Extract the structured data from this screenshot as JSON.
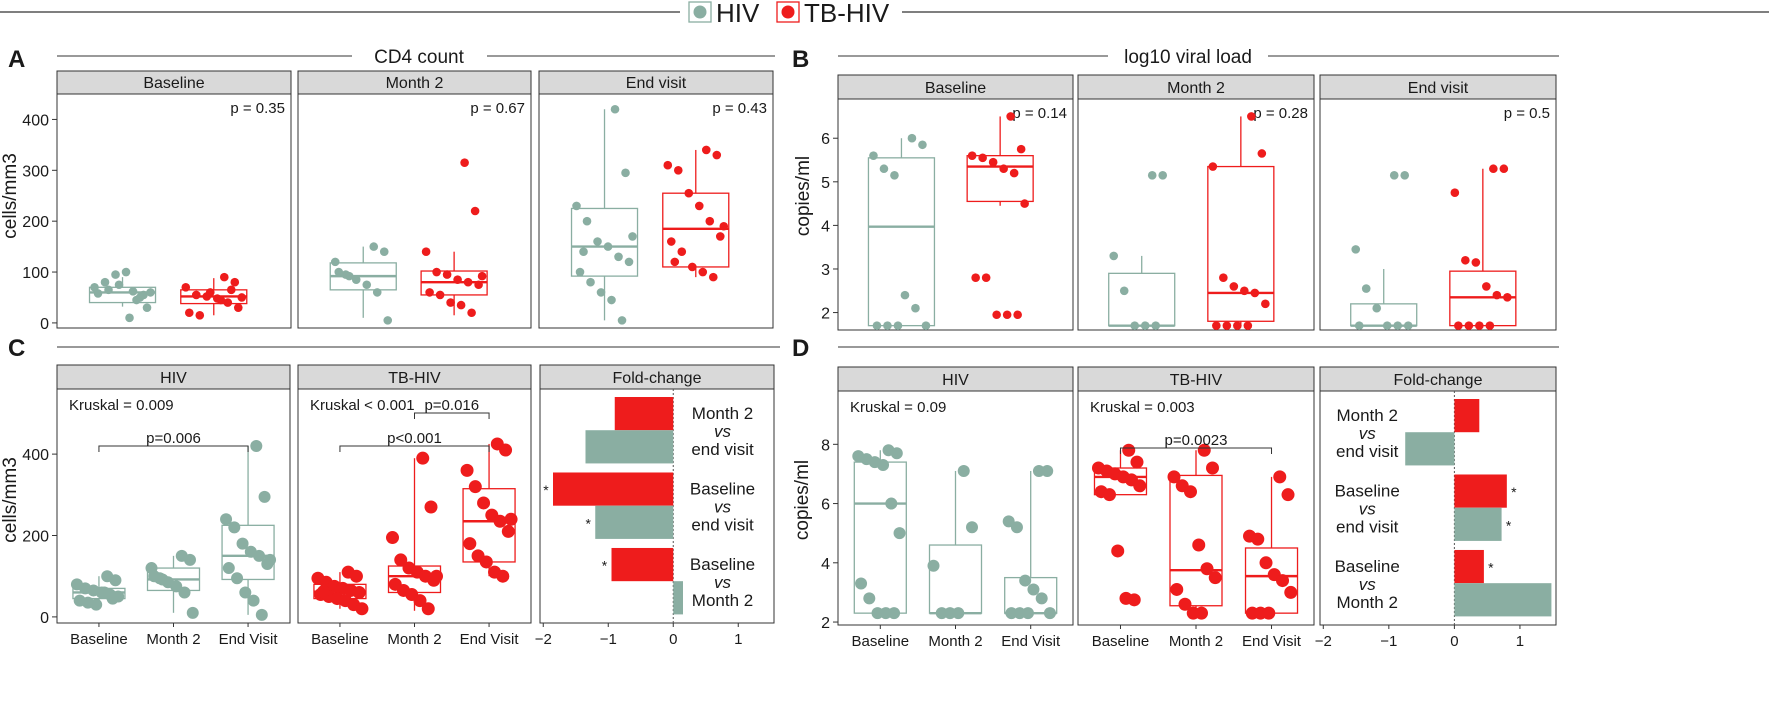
{
  "colors": {
    "hiv": "#8aaea2",
    "tbhiv": "#ee1c1c",
    "strip": "#d9d9d9",
    "axis": "#333333"
  },
  "legend": {
    "hiv": "HIV",
    "tbhiv": "TB-HIV"
  },
  "section_a": {
    "letter": "A",
    "title": "CD4 count",
    "ylabel": "cells/mm3"
  },
  "section_b": {
    "letter": "B",
    "title": "log10 viral load",
    "ylabel": "copies/ml"
  },
  "section_c": {
    "letter": "C",
    "ylabel": "cells/mm3"
  },
  "section_d": {
    "letter": "D",
    "ylabel": "copies/ml"
  },
  "chart_data": [
    {
      "id": "A",
      "type": "box",
      "ylim": [
        -10,
        450
      ],
      "yticks": [
        0,
        100,
        200,
        300,
        400
      ],
      "panels": [
        {
          "strip": "Baseline",
          "pval": "p = 0.35",
          "groups": [
            {
              "g": "hiv",
              "box": [
                40,
                60,
                70,
                32,
                90
              ],
              "pts": [
                62,
                55,
                70,
                80,
                95,
                100,
                45,
                30,
                58,
                65,
                75,
                10,
                50,
                60
              ]
            },
            {
              "g": "tbhiv",
              "box": [
                38,
                52,
                65,
                15,
                88
              ],
              "pts": [
                90,
                80,
                70,
                55,
                52,
                48,
                40,
                30,
                20,
                15,
                60,
                45,
                65,
                50
              ]
            }
          ]
        },
        {
          "strip": "Month 2",
          "pval": "p = 0.67",
          "groups": [
            {
              "g": "hiv",
              "box": [
                65,
                92,
                118,
                10,
                150
              ],
              "pts": [
                150,
                140,
                120,
                95,
                85,
                75,
                60,
                5,
                100,
                92
              ]
            },
            {
              "g": "tbhiv",
              "box": [
                55,
                80,
                102,
                15,
                140
              ],
              "pts": [
                315,
                220,
                140,
                100,
                95,
                85,
                80,
                75,
                60,
                55,
                40,
                35,
                20,
                92
              ]
            }
          ]
        },
        {
          "strip": "End  visit",
          "pval": "p = 0.43",
          "groups": [
            {
              "g": "hiv",
              "box": [
                92,
                150,
                225,
                5,
                420
              ],
              "pts": [
                420,
                295,
                230,
                200,
                160,
                150,
                130,
                120,
                100,
                80,
                60,
                45,
                5,
                170,
                140
              ]
            },
            {
              "g": "tbhiv",
              "box": [
                110,
                185,
                255,
                90,
                340
              ],
              "pts": [
                340,
                330,
                310,
                300,
                255,
                230,
                200,
                170,
                160,
                140,
                110,
                100,
                90,
                190,
                120
              ]
            }
          ]
        }
      ]
    },
    {
      "id": "B",
      "type": "box",
      "ylim": [
        1.6,
        6.9
      ],
      "yticks": [
        2,
        3,
        4,
        5,
        6
      ],
      "panels": [
        {
          "strip": "Baseline",
          "pval": "p = 0.14",
          "groups": [
            {
              "g": "hiv",
              "box": [
                1.7,
                3.97,
                5.55,
                1.7,
                6.0
              ],
              "pts": [
                6.0,
                5.85,
                5.6,
                5.3,
                5.15,
                2.4,
                2.1,
                1.7,
                1.7,
                1.7,
                1.7
              ]
            },
            {
              "g": "tbhiv",
              "box": [
                4.55,
                5.35,
                5.6,
                4.45,
                6.5
              ],
              "pts": [
                6.5,
                5.75,
                5.6,
                5.55,
                5.45,
                5.3,
                5.2,
                4.5,
                2.8,
                2.8,
                1.95,
                1.95,
                1.95
              ]
            }
          ]
        },
        {
          "strip": "Month 2",
          "pval": "p = 0.28",
          "groups": [
            {
              "g": "hiv",
              "box": [
                1.7,
                1.7,
                2.9,
                1.7,
                3.3
              ],
              "pts": [
                5.15,
                5.15,
                3.3,
                2.5,
                1.7,
                1.7,
                1.7
              ]
            },
            {
              "g": "tbhiv",
              "box": [
                1.8,
                2.45,
                5.35,
                1.7,
                6.5
              ],
              "pts": [
                6.5,
                5.65,
                5.35,
                2.8,
                2.6,
                2.5,
                2.45,
                2.2,
                1.7,
                1.7,
                1.7,
                1.7
              ]
            }
          ]
        },
        {
          "strip": "End visit",
          "pval": "p = 0.5",
          "groups": [
            {
              "g": "hiv",
              "box": [
                1.7,
                1.7,
                2.2,
                1.7,
                3.0
              ],
              "pts": [
                5.15,
                5.15,
                3.45,
                2.55,
                2.1,
                1.7,
                1.7,
                1.7,
                1.7
              ]
            },
            {
              "g": "tbhiv",
              "box": [
                1.7,
                2.35,
                2.95,
                1.7,
                5.3
              ],
              "pts": [
                5.3,
                5.3,
                4.75,
                3.2,
                3.15,
                2.6,
                2.4,
                2.35,
                1.7,
                1.7,
                1.7,
                1.7
              ]
            }
          ]
        }
      ]
    },
    {
      "id": "C",
      "type": "box",
      "ylim": [
        -15,
        560
      ],
      "yticks": [
        0,
        200,
        400
      ],
      "xcats": [
        "Baseline",
        "Month 2",
        "End Visit"
      ],
      "panels": [
        {
          "strip": "HIV",
          "color": "hiv",
          "kruskal": "Kruskal = 0.009",
          "brackets": [
            {
              "from": 0,
              "to": 2,
              "level": 0,
              "label": "p=0.006"
            }
          ],
          "groups": [
            {
              "box": [
                45,
                60,
                70,
                30,
                100
              ],
              "pts": [
                100,
                90,
                80,
                70,
                65,
                60,
                55,
                50,
                40,
                35,
                30,
                60,
                45
              ]
            },
            {
              "box": [
                65,
                92,
                120,
                10,
                150
              ],
              "pts": [
                150,
                140,
                120,
                95,
                85,
                75,
                60,
                10,
                100,
                92
              ]
            },
            {
              "box": [
                92,
                150,
                225,
                5,
                420
              ],
              "pts": [
                420,
                295,
                240,
                220,
                180,
                160,
                150,
                130,
                120,
                95,
                60,
                40,
                5,
                140
              ]
            }
          ]
        },
        {
          "strip": "TB-HIV",
          "color": "tbhiv",
          "kruskal": "Kruskal < 0.001",
          "brackets": [
            {
              "from": 1,
              "to": 2,
              "level": 1,
              "label": "p=0.016"
            },
            {
              "from": 0,
              "to": 2,
              "level": 0,
              "label": "p<0.001"
            }
          ],
          "groups": [
            {
              "box": [
                45,
                62,
                80,
                20,
                110
              ],
              "pts": [
                110,
                100,
                95,
                85,
                75,
                70,
                65,
                60,
                55,
                50,
                45,
                40,
                30,
                20,
                62
              ]
            },
            {
              "box": [
                60,
                100,
                125,
                15,
                390
              ],
              "pts": [
                390,
                270,
                195,
                140,
                120,
                110,
                100,
                90,
                80,
                65,
                55,
                40,
                20,
                100
              ]
            },
            {
              "box": [
                135,
                235,
                315,
                100,
                425
              ],
              "pts": [
                425,
                410,
                360,
                320,
                280,
                250,
                235,
                210,
                180,
                150,
                135,
                110,
                100,
                240
              ]
            }
          ]
        }
      ],
      "foldchange": {
        "strip": "Fold-change",
        "xlim": [
          -2.05,
          1.55
        ],
        "xticks": [
          -2,
          -1,
          0,
          1
        ],
        "rows": [
          {
            "l1": "Month 2",
            "vs": "vs",
            "l2": "end visit",
            "red": -0.9,
            "green": -1.35,
            "red_star": "",
            "green_star": ""
          },
          {
            "l1": "Baseline",
            "vs": "vs",
            "l2": "end visit",
            "red": -1.85,
            "green": -1.2,
            "red_star": "*",
            "green_star": "*"
          },
          {
            "l1": "Baseline",
            "vs": "vs",
            "l2": "Month 2",
            "red": -0.95,
            "green": 0.15,
            "red_star": "*",
            "green_star": ""
          }
        ]
      }
    },
    {
      "id": "D",
      "type": "box",
      "ylim": [
        1.9,
        9.8
      ],
      "yticks": [
        2,
        4,
        6,
        8
      ],
      "xcats": [
        "Baseline",
        "Month 2",
        "End Visit"
      ],
      "panels": [
        {
          "strip": "HIV",
          "color": "hiv",
          "kruskal": "Kruskal = 0.09",
          "brackets": [],
          "groups": [
            {
              "box": [
                2.3,
                6.0,
                7.4,
                2.3,
                7.8
              ],
              "pts": [
                7.8,
                7.7,
                7.6,
                7.5,
                7.4,
                7.3,
                6.0,
                5.0,
                3.3,
                2.8,
                2.3,
                2.3,
                2.3
              ]
            },
            {
              "box": [
                2.3,
                2.3,
                4.6,
                2.3,
                7.1
              ],
              "pts": [
                7.1,
                5.2,
                3.9,
                2.3,
                2.3,
                2.3
              ]
            },
            {
              "box": [
                2.3,
                2.3,
                3.5,
                2.3,
                7.1
              ],
              "pts": [
                7.1,
                7.1,
                5.4,
                5.2,
                3.4,
                3.1,
                2.8,
                2.3,
                2.3,
                2.3,
                2.3
              ]
            }
          ]
        },
        {
          "strip": "TB-HIV",
          "color": "tbhiv",
          "kruskal": "Kruskal = 0.003",
          "brackets": [
            {
              "from": 0,
              "to": 2,
              "level": 0,
              "label": "p=0.0023"
            }
          ],
          "groups": [
            {
              "box": [
                6.3,
                6.9,
                7.2,
                6.3,
                7.8
              ],
              "pts": [
                7.8,
                7.4,
                7.2,
                7.1,
                7.0,
                6.9,
                6.8,
                6.6,
                6.4,
                6.3,
                4.4,
                2.8,
                2.75
              ]
            },
            {
              "box": [
                2.55,
                3.75,
                6.95,
                2.3,
                7.8
              ],
              "pts": [
                7.8,
                7.2,
                6.9,
                6.6,
                6.4,
                4.6,
                3.8,
                3.5,
                3.1,
                2.6,
                2.3,
                2.3
              ]
            },
            {
              "box": [
                2.3,
                3.55,
                4.5,
                2.3,
                6.9
              ],
              "pts": [
                6.9,
                6.3,
                4.9,
                4.8,
                4.0,
                3.6,
                3.4,
                3.0,
                2.3,
                2.3,
                2.3
              ]
            }
          ]
        }
      ],
      "foldchange": {
        "strip": "Fold-change",
        "xlim": [
          -2.05,
          1.55
        ],
        "xticks": [
          -2,
          -1,
          0,
          1
        ],
        "rows": [
          {
            "l1": "Month 2",
            "vs": "vs",
            "l2": "end visit",
            "red": 0.38,
            "green": -0.75,
            "red_star": "",
            "green_star": ""
          },
          {
            "l1": "Baseline",
            "vs": "vs",
            "l2": "end visit",
            "red": 0.8,
            "green": 0.72,
            "red_star": "*",
            "green_star": "*"
          },
          {
            "l1": "Baseline",
            "vs": "vs",
            "l2": "Month 2",
            "red": 0.45,
            "green": 1.48,
            "red_star": "*",
            "green_star": ""
          }
        ]
      }
    }
  ]
}
